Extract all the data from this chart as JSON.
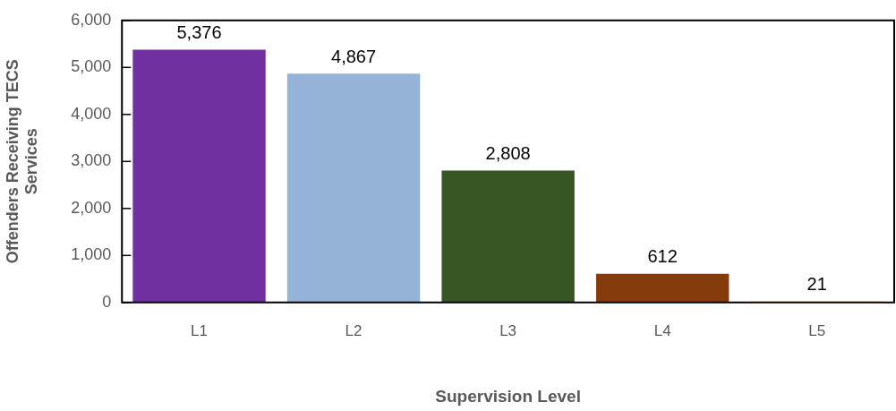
{
  "chart_data": {
    "type": "bar",
    "xlabel": "Supervision Level",
    "ylabel": "Offenders Receiving TECS Services",
    "categories": [
      "L1",
      "L2",
      "L3",
      "L4",
      "L5"
    ],
    "values": [
      5376,
      4867,
      2808,
      612,
      21
    ],
    "value_labels": [
      "5,376",
      "4,867",
      "2,808",
      "612",
      "21"
    ],
    "colors": [
      "#7030a0",
      "#95b3d7",
      "#375623",
      "#843c0c",
      "#ffc000"
    ],
    "ylim": [
      0,
      6000
    ],
    "yticks": [
      0,
      {
        "value": 1000,
        "label": "1,000"
      },
      {
        "value": 2000,
        "label": "2,000"
      },
      {
        "value": 3000,
        "label": "3,000"
      },
      {
        "value": 4000,
        "label": "4,000"
      },
      {
        "value": 5000,
        "label": "5,000"
      },
      {
        "value": 6000,
        "label": "6,000"
      }
    ],
    "grid": false,
    "legend": false
  }
}
